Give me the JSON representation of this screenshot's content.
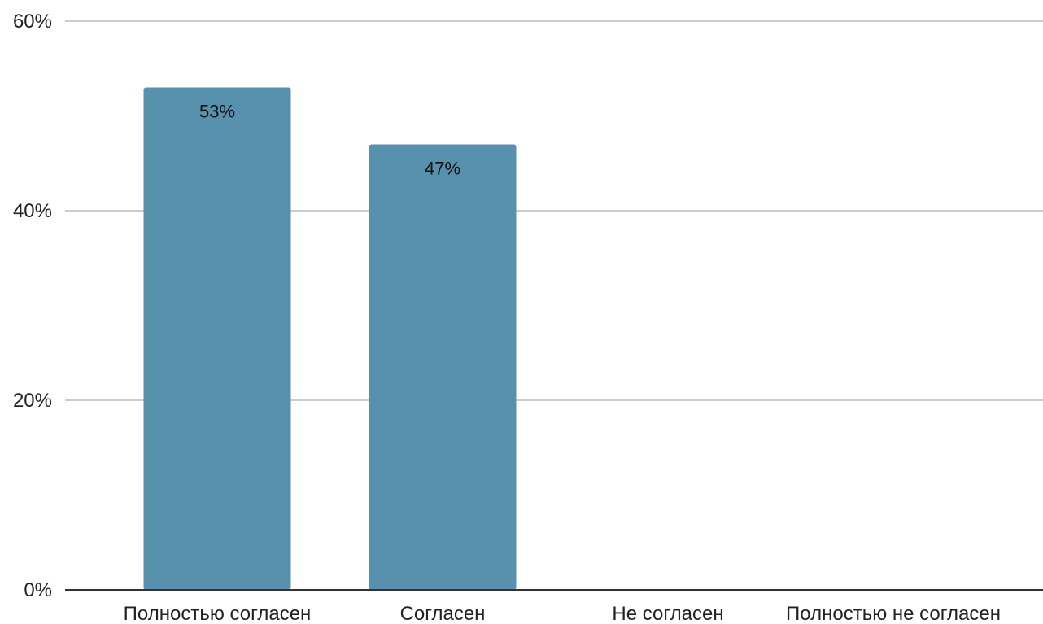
{
  "chart_data": {
    "type": "bar",
    "categories": [
      "Полностью согласен",
      "Согласен",
      "Не согласен",
      "Полностью не согласен"
    ],
    "values": [
      53,
      47,
      0,
      0
    ],
    "data_labels": [
      "53%",
      "47%",
      "",
      ""
    ],
    "ylim": [
      0,
      60
    ],
    "yticks": [
      0,
      20,
      40,
      60
    ],
    "ytick_labels": [
      "0%",
      "20%",
      "40%",
      "60%"
    ],
    "grid": true,
    "legend": "none",
    "colors": {
      "bar": "#5891ae",
      "grid": "#cccccc",
      "axis": "#333333"
    }
  }
}
